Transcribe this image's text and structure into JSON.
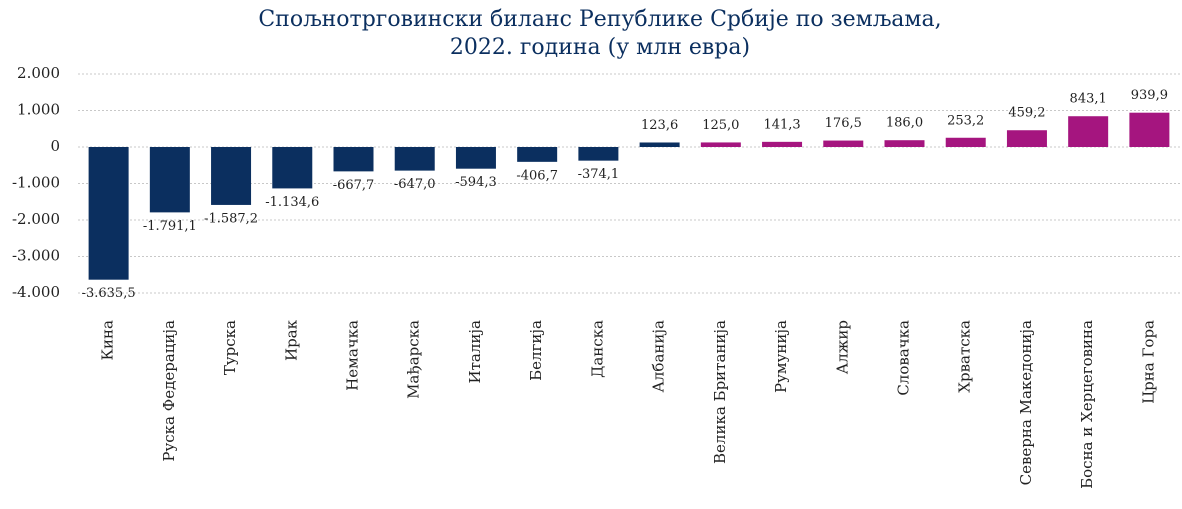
{
  "chart_data": {
    "type": "bar",
    "title": [
      "Спољнотрговински биланс Републике Србије по земљама,",
      "2022. година (у млн евра)"
    ],
    "categories": [
      "Кина",
      "Руска Федерација",
      "Турска",
      "Ирак",
      "Немачка",
      "Мађарска",
      "Италија",
      "Белгија",
      "Данска",
      "Албанија",
      "Велика Британија",
      "Румунија",
      "Алжир",
      "Словачка",
      "Хрватска",
      "Северна Македонија",
      "Босна и Херцеговина",
      "Црна Гора"
    ],
    "values": [
      -3635.5,
      -1791.1,
      -1587.2,
      -1134.6,
      -667.7,
      -647.0,
      -594.3,
      -406.7,
      -374.1,
      123.6,
      125.0,
      141.3,
      176.5,
      186.0,
      253.2,
      459.2,
      843.1,
      939.9
    ],
    "value_labels": [
      "-3.635,5",
      "-1.791,1",
      "-1.587,2",
      "-1.134,6",
      "-667,7",
      "-647,0",
      "-594,3",
      "-406,7",
      "-374,1",
      "123,6",
      "125,0",
      "141,3",
      "176,5",
      "186,0",
      "253,2",
      "459,2",
      "843,1",
      "939,9"
    ],
    "colors": [
      "#0b2f5f",
      "#0b2f5f",
      "#0b2f5f",
      "#0b2f5f",
      "#0b2f5f",
      "#0b2f5f",
      "#0b2f5f",
      "#0b2f5f",
      "#0b2f5f",
      "#0b2f5f",
      "#a5157f",
      "#a5157f",
      "#a5157f",
      "#a5157f",
      "#a5157f",
      "#a5157f",
      "#a5157f",
      "#a5157f"
    ],
    "ylim": [
      -4000,
      2000
    ],
    "yticks": [
      {
        "value": -4000,
        "label": "-4.000"
      },
      {
        "value": -3000,
        "label": "-3.000"
      },
      {
        "value": -2000,
        "label": "-2.000"
      },
      {
        "value": -1000,
        "label": "-1.000"
      },
      0,
      {
        "value": 1000,
        "label": "1.000"
      },
      {
        "value": 2000,
        "label": "2.000"
      }
    ],
    "grid": true
  }
}
